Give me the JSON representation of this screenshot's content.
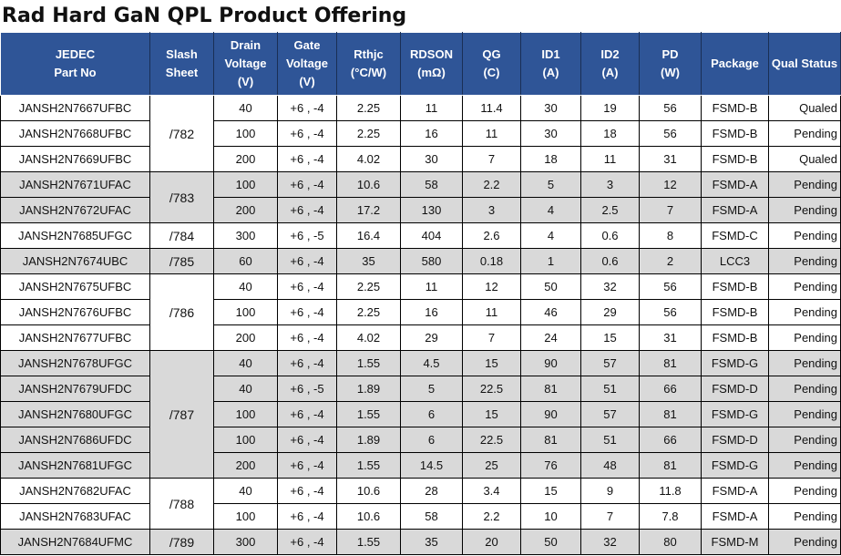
{
  "title": "Rad Hard GaN QPL Product Offering",
  "headers": [
    [
      "JEDEC",
      "Part No"
    ],
    [
      "Slash",
      "Sheet"
    ],
    [
      "Drain",
      "Voltage",
      "(V)"
    ],
    [
      "Gate",
      "Voltage",
      "(V)"
    ],
    [
      "Rthjc",
      "(°C/W)"
    ],
    [
      "RDSON",
      "(mΩ)"
    ],
    [
      "QG",
      "(C)"
    ],
    [
      "ID1",
      "(A)"
    ],
    [
      "ID2",
      "(A)"
    ],
    [
      "PD",
      "(W)"
    ],
    [
      "Package"
    ],
    [
      "Qual Status"
    ]
  ],
  "rows": [
    {
      "part": "JANSH2N7667UFBC",
      "slash": "/782",
      "drain": "40",
      "gate": "+6 , -4",
      "rthjc": "2.25",
      "rdson": "11",
      "qg": "11.4",
      "id1": "30",
      "id2": "19",
      "pd": "56",
      "pkg": "FSMD-B",
      "status": "Qualed"
    },
    {
      "part": "JANSH2N7668UFBC",
      "slash": "/782",
      "drain": "100",
      "gate": "+6 , -4",
      "rthjc": "2.25",
      "rdson": "16",
      "qg": "11",
      "id1": "30",
      "id2": "18",
      "pd": "56",
      "pkg": "FSMD-B",
      "status": "Pending"
    },
    {
      "part": "JANSH2N7669UFBC",
      "slash": "/782",
      "drain": "200",
      "gate": "+6 , -4",
      "rthjc": "4.02",
      "rdson": "30",
      "qg": "7",
      "id1": "18",
      "id2": "11",
      "pd": "31",
      "pkg": "FSMD-B",
      "status": "Qualed"
    },
    {
      "part": "JANSH2N7671UFAC",
      "slash": "/783",
      "drain": "100",
      "gate": "+6 , -4",
      "rthjc": "10.6",
      "rdson": "58",
      "qg": "2.2",
      "id1": "5",
      "id2": "3",
      "pd": "12",
      "pkg": "FSMD-A",
      "status": "Pending"
    },
    {
      "part": "JANSH2N7672UFAC",
      "slash": "/783",
      "drain": "200",
      "gate": "+6 , -4",
      "rthjc": "17.2",
      "rdson": "130",
      "qg": "3",
      "id1": "4",
      "id2": "2.5",
      "pd": "7",
      "pkg": "FSMD-A",
      "status": "Pending"
    },
    {
      "part": "JANSH2N7685UFGC",
      "slash": "/784",
      "drain": "300",
      "gate": "+6 , -5",
      "rthjc": "16.4",
      "rdson": "404",
      "qg": "2.6",
      "id1": "4",
      "id2": "0.6",
      "pd": "8",
      "pkg": "FSMD-C",
      "status": "Pending"
    },
    {
      "part": "JANSH2N7674UBC",
      "slash": "/785",
      "drain": "60",
      "gate": "+6 , -4",
      "rthjc": "35",
      "rdson": "580",
      "qg": "0.18",
      "id1": "1",
      "id2": "0.6",
      "pd": "2",
      "pkg": "LCC3",
      "status": "Pending"
    },
    {
      "part": "JANSH2N7675UFBC",
      "slash": "/786",
      "drain": "40",
      "gate": "+6 , -4",
      "rthjc": "2.25",
      "rdson": "11",
      "qg": "12",
      "id1": "50",
      "id2": "32",
      "pd": "56",
      "pkg": "FSMD-B",
      "status": "Pending"
    },
    {
      "part": "JANSH2N7676UFBC",
      "slash": "/786",
      "drain": "100",
      "gate": "+6 , -4",
      "rthjc": "2.25",
      "rdson": "16",
      "qg": "11",
      "id1": "46",
      "id2": "29",
      "pd": "56",
      "pkg": "FSMD-B",
      "status": "Pending"
    },
    {
      "part": "JANSH2N7677UFBC",
      "slash": "/786",
      "drain": "200",
      "gate": "+6 , -4",
      "rthjc": "4.02",
      "rdson": "29",
      "qg": "7",
      "id1": "24",
      "id2": "15",
      "pd": "31",
      "pkg": "FSMD-B",
      "status": "Pending"
    },
    {
      "part": "JANSH2N7678UFGC",
      "slash": "/787",
      "drain": "40",
      "gate": "+6 , -4",
      "rthjc": "1.55",
      "rdson": "4.5",
      "qg": "15",
      "id1": "90",
      "id2": "57",
      "pd": "81",
      "pkg": "FSMD-G",
      "status": "Pending"
    },
    {
      "part": "JANSH2N7679UFDC",
      "slash": "/787",
      "drain": "40",
      "gate": "+6 , -5",
      "rthjc": "1.89",
      "rdson": "5",
      "qg": "22.5",
      "id1": "81",
      "id2": "51",
      "pd": "66",
      "pkg": "FSMD-D",
      "status": "Pending"
    },
    {
      "part": "JANSH2N7680UFGC",
      "slash": "/787",
      "drain": "100",
      "gate": "+6 , -4",
      "rthjc": "1.55",
      "rdson": "6",
      "qg": "15",
      "id1": "90",
      "id2": "57",
      "pd": "81",
      "pkg": "FSMD-G",
      "status": "Pending"
    },
    {
      "part": "JANSH2N7686UFDC",
      "slash": "/787",
      "drain": "100",
      "gate": "+6 , -4",
      "rthjc": "1.89",
      "rdson": "6",
      "qg": "22.5",
      "id1": "81",
      "id2": "51",
      "pd": "66",
      "pkg": "FSMD-D",
      "status": "Pending"
    },
    {
      "part": "JANSH2N7681UFGC",
      "slash": "/787",
      "drain": "200",
      "gate": "+6 , -4",
      "rthjc": "1.55",
      "rdson": "14.5",
      "qg": "25",
      "id1": "76",
      "id2": "48",
      "pd": "81",
      "pkg": "FSMD-G",
      "status": "Pending"
    },
    {
      "part": "JANSH2N7682UFAC",
      "slash": "/788",
      "drain": "40",
      "gate": "+6 , -4",
      "rthjc": "10.6",
      "rdson": "28",
      "qg": "3.4",
      "id1": "15",
      "id2": "9",
      "pd": "11.8",
      "pkg": "FSMD-A",
      "status": "Pending"
    },
    {
      "part": "JANSH2N7683UFAC",
      "slash": "/788",
      "drain": "100",
      "gate": "+6 , -4",
      "rthjc": "10.6",
      "rdson": "58",
      "qg": "2.2",
      "id1": "10",
      "id2": "7",
      "pd": "7.8",
      "pkg": "FSMD-A",
      "status": "Pending"
    },
    {
      "part": "JANSH2N7684UFMC",
      "slash": "/789",
      "drain": "300",
      "gate": "+6 , -4",
      "rthjc": "1.55",
      "rdson": "35",
      "qg": "20",
      "id1": "50",
      "id2": "32",
      "pd": "80",
      "pkg": "FSMD-M",
      "status": "Pending"
    }
  ],
  "colors": {
    "header_bg": "#2f5597",
    "header_text": "#ffffff",
    "shaded_row": "#d9d9d9"
  }
}
